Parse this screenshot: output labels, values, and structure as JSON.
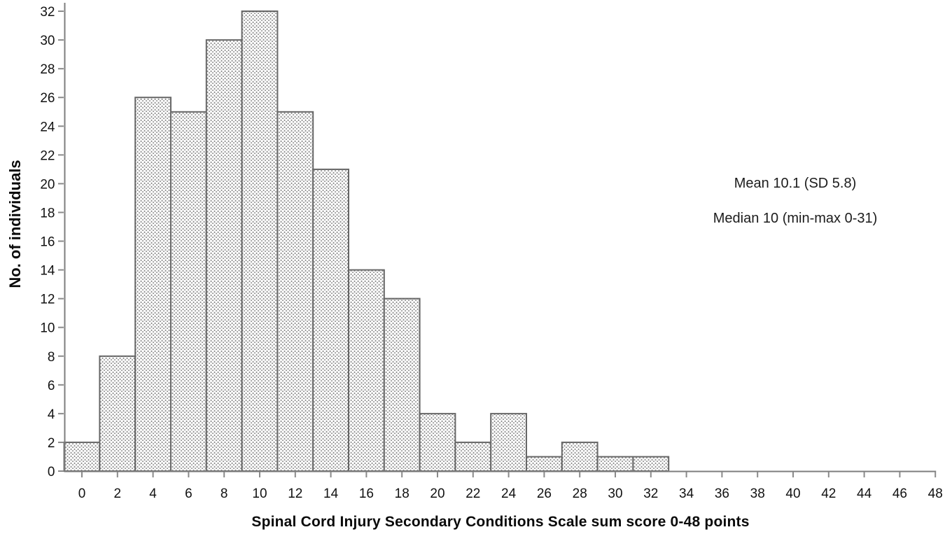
{
  "chart_data": {
    "type": "bar",
    "subtype": "histogram",
    "title": "",
    "xlabel": "Spinal Cord Injury Secondary Conditions Scale sum score 0-48 points",
    "ylabel": "No. of individuals",
    "categories": [
      0,
      2,
      4,
      6,
      8,
      10,
      12,
      14,
      16,
      18,
      20,
      22,
      24,
      26,
      28,
      30,
      32
    ],
    "values": [
      2,
      8,
      26,
      25,
      30,
      32,
      25,
      21,
      14,
      12,
      4,
      2,
      4,
      1,
      2,
      1,
      1
    ],
    "bin_width": 2,
    "xlim": [
      -1,
      48
    ],
    "ylim": [
      0,
      32
    ],
    "x_ticks": [
      0,
      2,
      4,
      6,
      8,
      10,
      12,
      14,
      16,
      18,
      20,
      22,
      24,
      26,
      28,
      30,
      32,
      34,
      36,
      38,
      40,
      42,
      44,
      46,
      48
    ],
    "y_ticks": [
      0,
      2,
      4,
      6,
      8,
      10,
      12,
      14,
      16,
      18,
      20,
      22,
      24,
      26,
      28,
      30,
      32
    ],
    "grid": false,
    "legend": null,
    "annotations": [
      {
        "text": "Mean 10.1 (SD 5.8)"
      },
      {
        "text": "Median 10 (min-max 0-31)"
      }
    ],
    "colors": {
      "bar_fill_background": "#ffffff",
      "bar_dot": "#8e8e8e",
      "bar_border": "#676767",
      "axis": "#7d7d7d",
      "tick": "#8a8a8a",
      "text": "#121212"
    }
  }
}
